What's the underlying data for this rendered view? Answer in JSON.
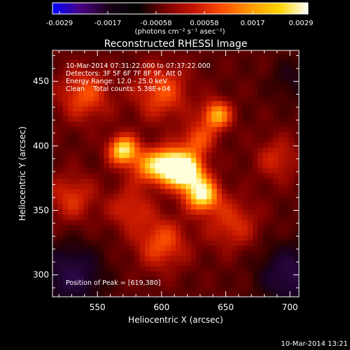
{
  "chart_data": {
    "type": "heatmap",
    "title": "Reconstructed RHESSI Image",
    "xlabel": "Heliocentric X (arcsec)",
    "ylabel": "Heliocentric Y (arcsec)",
    "xlim": [
      515,
      707
    ],
    "ylim": [
      283,
      474
    ],
    "xticks": [
      550,
      600,
      650,
      700
    ],
    "yticks": [
      300,
      350,
      400,
      450
    ],
    "colorbar": {
      "range": [
        -0.0029,
        0.0029
      ],
      "ticks": [
        "-0.0029",
        "-0.0017",
        "-0.00058",
        "0.00058",
        "0.0017",
        "0.0029"
      ],
      "unit_label": "(photons cm⁻² s⁻¹ asec⁻²)",
      "colors": [
        "#0000ff",
        "#4b0080",
        "#1a0018",
        "#000000",
        "#7a0000",
        "#c81400",
        "#ff5000",
        "#ff9a00",
        "#ffd400",
        "#ffffff"
      ]
    },
    "annotations": [
      "10-Mar-2014 07:31:22.000 to 07:37:22.000",
      "Detectors: 3F 5F 6F 7F 8F 9F, Att 0",
      "Energy Range: 12.0 - 25.0 keV",
      "Clean    Total counts: 5.38E+04"
    ],
    "peak_label": "Position of Peak = [619,380]",
    "peak_position": [
      619,
      380
    ],
    "sources": [
      {
        "x": 619,
        "y": 380,
        "amplitude": 1.0,
        "sigma": 10
      },
      {
        "x": 632,
        "y": 362,
        "amplitude": 0.85,
        "sigma": 9
      },
      {
        "x": 606,
        "y": 386,
        "amplitude": 0.75,
        "sigma": 9
      },
      {
        "x": 570,
        "y": 397,
        "amplitude": 0.85,
        "sigma": 8
      },
      {
        "x": 643,
        "y": 424,
        "amplitude": 0.7,
        "sigma": 8
      },
      {
        "x": 590,
        "y": 384,
        "amplitude": 0.55,
        "sigma": 10
      },
      {
        "x": 628,
        "y": 405,
        "amplitude": 0.45,
        "sigma": 9
      },
      {
        "x": 540,
        "y": 440,
        "amplitude": 0.45,
        "sigma": 14
      },
      {
        "x": 600,
        "y": 442,
        "amplitude": 0.45,
        "sigma": 15
      },
      {
        "x": 530,
        "y": 360,
        "amplitude": 0.35,
        "sigma": 13
      },
      {
        "x": 600,
        "y": 325,
        "amplitude": 0.45,
        "sigma": 14
      },
      {
        "x": 655,
        "y": 340,
        "amplitude": 0.35,
        "sigma": 14
      },
      {
        "x": 690,
        "y": 390,
        "amplitude": 0.3,
        "sigma": 12
      },
      {
        "x": 575,
        "y": 352,
        "amplitude": 0.32,
        "sigma": 12
      }
    ],
    "negative_regions": [
      {
        "x": 530,
        "y": 300,
        "amplitude": 0.5,
        "sigma": 16
      },
      {
        "x": 700,
        "y": 300,
        "amplitude": 0.5,
        "sigma": 16
      },
      {
        "x": 702,
        "y": 452,
        "amplitude": 0.2,
        "sigma": 12
      }
    ]
  },
  "footer": {
    "timestamp": "10-Mar-2014 13:21"
  }
}
